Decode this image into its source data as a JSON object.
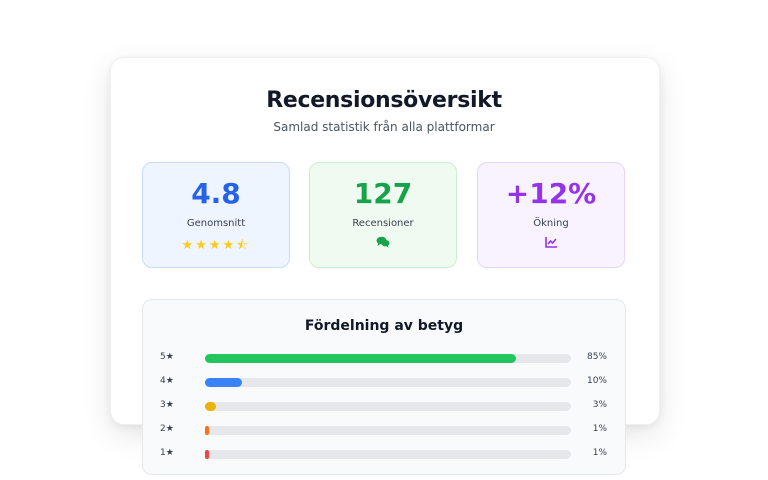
{
  "header": {
    "title": "Recensionsöversikt",
    "subtitle": "Samlad statistik från alla plattformar"
  },
  "stats": [
    {
      "value": "4.8",
      "label": "Genomsnitt",
      "icon": "star-rating-icons",
      "rating": 4.5,
      "color": "#2563eb"
    },
    {
      "value": "127",
      "label": "Recensioner",
      "icon": "comments-icon",
      "color": "#16a34a"
    },
    {
      "value": "+12%",
      "label": "Ökning",
      "icon": "line-chart-icon",
      "color": "#9333ea"
    }
  ],
  "distribution": {
    "title": "Fördelning av betyg",
    "rows": [
      {
        "label": "5★",
        "percent": 85,
        "percent_label": "85%",
        "color": "#22c55e"
      },
      {
        "label": "4★",
        "percent": 10,
        "percent_label": "10%",
        "color": "#3b82f6"
      },
      {
        "label": "3★",
        "percent": 3,
        "percent_label": "3%",
        "color": "#eab308"
      },
      {
        "label": "2★",
        "percent": 1,
        "percent_label": "1%",
        "color": "#f97316"
      },
      {
        "label": "1★",
        "percent": 1,
        "percent_label": "1%",
        "color": "#ef4444"
      }
    ]
  }
}
